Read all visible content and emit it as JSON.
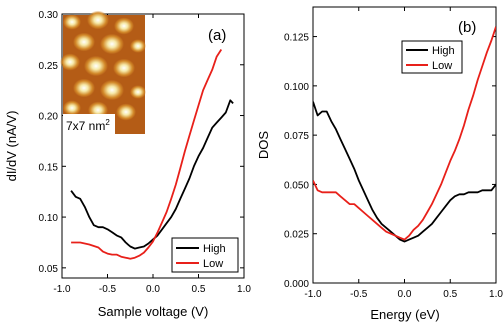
{
  "chart_data": [
    {
      "type": "line",
      "panel_label": "(a)",
      "xlabel": "Sample voltage (V)",
      "ylabel": "dI/dV (nA/V)",
      "xlim": [
        -1.0,
        1.0
      ],
      "ylim": [
        0.04,
        0.3
      ],
      "x_ticks": [
        -1.0,
        -0.5,
        0.0,
        0.5,
        1.0
      ],
      "x_tick_labels": [
        "-1.0",
        "-0.5",
        "0.0",
        "0.5",
        "1.0"
      ],
      "y_ticks": [
        0.05,
        0.1,
        0.15,
        0.2,
        0.25,
        0.3
      ],
      "y_tick_labels": [
        "0.05",
        "0.10",
        "0.15",
        "0.20",
        "0.25",
        "0.30"
      ],
      "legend_position": "bottom-right",
      "inset": {
        "label": "7x7 nm",
        "label_superscript": "2"
      },
      "series": [
        {
          "name": "High",
          "color": "#000000",
          "x": [
            -0.9,
            -0.85,
            -0.8,
            -0.75,
            -0.7,
            -0.65,
            -0.6,
            -0.55,
            -0.5,
            -0.45,
            -0.4,
            -0.35,
            -0.3,
            -0.25,
            -0.2,
            -0.15,
            -0.1,
            -0.05,
            0.0,
            0.05,
            0.1,
            0.15,
            0.2,
            0.25,
            0.3,
            0.35,
            0.4,
            0.45,
            0.5,
            0.55,
            0.6,
            0.65,
            0.7,
            0.75,
            0.8,
            0.85,
            0.88
          ],
          "y": [
            0.126,
            0.12,
            0.118,
            0.11,
            0.1,
            0.092,
            0.09,
            0.09,
            0.088,
            0.085,
            0.082,
            0.08,
            0.075,
            0.071,
            0.069,
            0.07,
            0.071,
            0.074,
            0.078,
            0.082,
            0.088,
            0.094,
            0.1,
            0.108,
            0.118,
            0.128,
            0.138,
            0.15,
            0.16,
            0.168,
            0.178,
            0.188,
            0.193,
            0.198,
            0.203,
            0.215,
            0.212
          ]
        },
        {
          "name": "Low",
          "color": "#e8201a",
          "x": [
            -0.9,
            -0.8,
            -0.7,
            -0.6,
            -0.55,
            -0.5,
            -0.45,
            -0.4,
            -0.35,
            -0.3,
            -0.25,
            -0.2,
            -0.15,
            -0.1,
            -0.05,
            0.0,
            0.05,
            0.1,
            0.15,
            0.2,
            0.25,
            0.3,
            0.35,
            0.4,
            0.45,
            0.5,
            0.55,
            0.6,
            0.65,
            0.7,
            0.75
          ],
          "y": [
            0.075,
            0.075,
            0.073,
            0.07,
            0.066,
            0.064,
            0.063,
            0.063,
            0.061,
            0.06,
            0.059,
            0.06,
            0.062,
            0.065,
            0.07,
            0.076,
            0.085,
            0.095,
            0.105,
            0.118,
            0.132,
            0.148,
            0.165,
            0.18,
            0.195,
            0.21,
            0.225,
            0.235,
            0.245,
            0.258,
            0.265
          ]
        }
      ]
    },
    {
      "type": "line",
      "panel_label": "(b)",
      "xlabel": "Energy (eV)",
      "ylabel": "DOS",
      "xlim": [
        -1.0,
        1.0
      ],
      "ylim": [
        0.0,
        0.14
      ],
      "x_ticks": [
        -1.0,
        -0.5,
        0.0,
        0.5,
        1.0
      ],
      "x_tick_labels": [
        "-1.0",
        "-0.5",
        "0.0",
        "0.5",
        "1.0"
      ],
      "y_ticks": [
        0.0,
        0.025,
        0.05,
        0.075,
        0.1,
        0.125
      ],
      "y_tick_labels": [
        "0.000",
        "0.025",
        "0.050",
        "0.075",
        "0.100",
        "0.125"
      ],
      "legend_position": "top-right",
      "series": [
        {
          "name": "High",
          "color": "#000000",
          "x": [
            -1.0,
            -0.95,
            -0.9,
            -0.85,
            -0.8,
            -0.75,
            -0.7,
            -0.65,
            -0.6,
            -0.55,
            -0.5,
            -0.45,
            -0.4,
            -0.35,
            -0.3,
            -0.25,
            -0.2,
            -0.15,
            -0.1,
            -0.05,
            0.0,
            0.05,
            0.1,
            0.15,
            0.2,
            0.25,
            0.3,
            0.35,
            0.4,
            0.45,
            0.5,
            0.55,
            0.6,
            0.65,
            0.7,
            0.75,
            0.8,
            0.85,
            0.9,
            0.95,
            1.0
          ],
          "y": [
            0.092,
            0.085,
            0.087,
            0.087,
            0.082,
            0.078,
            0.073,
            0.068,
            0.063,
            0.058,
            0.052,
            0.047,
            0.042,
            0.037,
            0.033,
            0.03,
            0.028,
            0.026,
            0.024,
            0.022,
            0.021,
            0.022,
            0.023,
            0.024,
            0.026,
            0.028,
            0.03,
            0.033,
            0.036,
            0.039,
            0.042,
            0.044,
            0.045,
            0.045,
            0.046,
            0.046,
            0.046,
            0.047,
            0.047,
            0.047,
            0.05
          ]
        },
        {
          "name": "Low",
          "color": "#e8201a",
          "x": [
            -1.0,
            -0.95,
            -0.9,
            -0.85,
            -0.8,
            -0.75,
            -0.7,
            -0.65,
            -0.6,
            -0.55,
            -0.5,
            -0.45,
            -0.4,
            -0.35,
            -0.3,
            -0.25,
            -0.2,
            -0.15,
            -0.1,
            -0.05,
            0.0,
            0.05,
            0.1,
            0.15,
            0.2,
            0.25,
            0.3,
            0.35,
            0.4,
            0.45,
            0.5,
            0.55,
            0.6,
            0.65,
            0.7,
            0.75,
            0.8,
            0.85,
            0.9,
            0.95,
            1.0
          ],
          "y": [
            0.052,
            0.047,
            0.046,
            0.046,
            0.046,
            0.046,
            0.044,
            0.042,
            0.04,
            0.04,
            0.038,
            0.036,
            0.034,
            0.032,
            0.03,
            0.028,
            0.026,
            0.025,
            0.024,
            0.023,
            0.022,
            0.024,
            0.027,
            0.029,
            0.032,
            0.036,
            0.04,
            0.045,
            0.05,
            0.056,
            0.062,
            0.067,
            0.073,
            0.08,
            0.088,
            0.095,
            0.103,
            0.11,
            0.117,
            0.123,
            0.13
          ]
        }
      ]
    }
  ]
}
